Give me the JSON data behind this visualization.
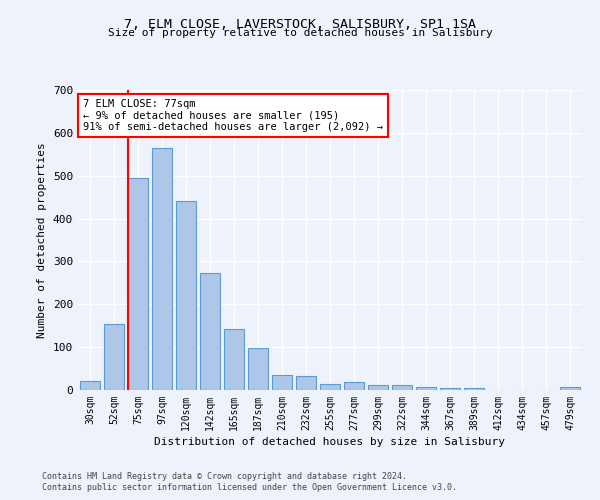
{
  "title": "7, ELM CLOSE, LAVERSTOCK, SALISBURY, SP1 1SA",
  "subtitle": "Size of property relative to detached houses in Salisbury",
  "xlabel": "Distribution of detached houses by size in Salisbury",
  "ylabel": "Number of detached properties",
  "categories": [
    "30sqm",
    "52sqm",
    "75sqm",
    "97sqm",
    "120sqm",
    "142sqm",
    "165sqm",
    "187sqm",
    "210sqm",
    "232sqm",
    "255sqm",
    "277sqm",
    "299sqm",
    "322sqm",
    "344sqm",
    "367sqm",
    "389sqm",
    "412sqm",
    "434sqm",
    "457sqm",
    "479sqm"
  ],
  "bar_heights": [
    22,
    155,
    495,
    565,
    442,
    272,
    143,
    97,
    35,
    32,
    15,
    18,
    12,
    11,
    7,
    5,
    5,
    0,
    0,
    0,
    7
  ],
  "bar_color": "#aec6e8",
  "bar_edge_color": "#5b9bd5",
  "marker_bar_idx": 2,
  "marker_label": "7 ELM CLOSE: 77sqm",
  "annotation_line1": "← 9% of detached houses are smaller (195)",
  "annotation_line2": "91% of semi-detached houses are larger (2,092) →",
  "marker_color": "red",
  "ylim": [
    0,
    700
  ],
  "yticks": [
    0,
    100,
    200,
    300,
    400,
    500,
    600,
    700
  ],
  "footer1": "Contains HM Land Registry data © Crown copyright and database right 2024.",
  "footer2": "Contains public sector information licensed under the Open Government Licence v3.0.",
  "background_color": "#eef2fa",
  "grid_color": "#ffffff"
}
